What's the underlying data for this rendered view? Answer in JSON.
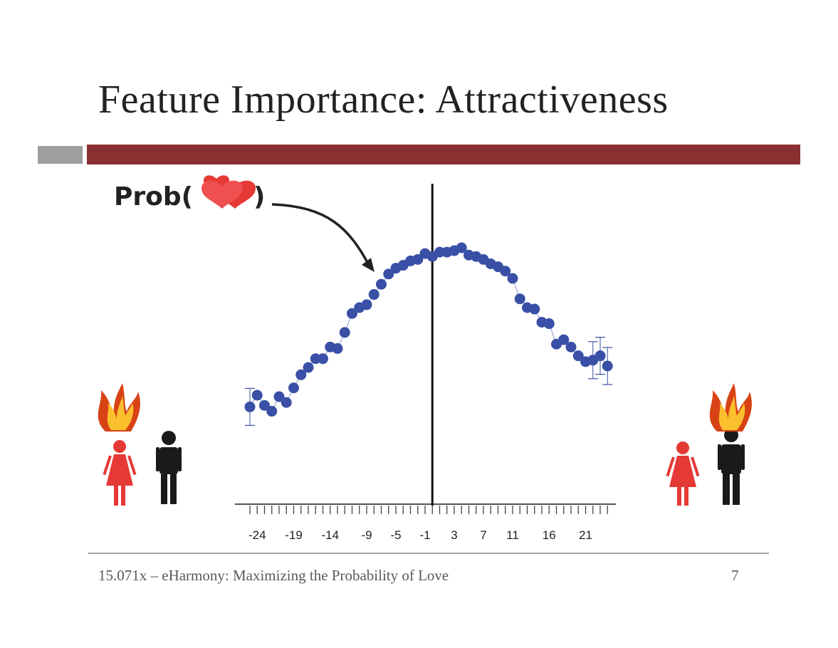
{
  "slide": {
    "title": "Feature Importance: Attractiveness",
    "footer": "15.071x – eHarmony: Maximizing the Probability of Love",
    "page_number": "7"
  },
  "colors": {
    "title_bar": "#8b3030",
    "title_bar_accent": "#9e9e9e",
    "points": "#3a4fa6",
    "woman_figure": "#e53935",
    "man_figure": "#1a1a1a",
    "flame_outer": "#d84315",
    "flame_inner": "#fbc02d"
  },
  "annotation": {
    "prefix": "Prob(",
    "suffix": ")",
    "icon": "hearts-icon"
  },
  "figures": {
    "left": {
      "icons": [
        "flame-icon",
        "woman-icon",
        "man-icon"
      ],
      "flame_over": "woman"
    },
    "right": {
      "icons": [
        "woman-icon",
        "man-icon",
        "flame-icon"
      ],
      "flame_over": "man"
    }
  },
  "chart_data": {
    "type": "scatter",
    "x": [
      -25,
      -24,
      -23,
      -22,
      -21,
      -20,
      -19,
      -18,
      -17,
      -16,
      -15,
      -14,
      -13,
      -12,
      -11,
      -10,
      -9,
      -8,
      -7,
      -6,
      -5,
      -4,
      -3,
      -2,
      -1,
      0,
      1,
      2,
      3,
      4,
      5,
      6,
      7,
      8,
      9,
      10,
      11,
      12,
      13,
      14,
      15,
      16,
      17,
      18,
      19,
      20,
      21,
      22,
      23,
      24
    ],
    "y": [
      0.12,
      0.2,
      0.13,
      0.09,
      0.19,
      0.15,
      0.25,
      0.34,
      0.39,
      0.45,
      0.45,
      0.53,
      0.52,
      0.63,
      0.76,
      0.8,
      0.82,
      0.89,
      0.96,
      1.03,
      1.07,
      1.09,
      1.12,
      1.13,
      1.17,
      1.15,
      1.18,
      1.18,
      1.19,
      1.21,
      1.16,
      1.15,
      1.13,
      1.1,
      1.08,
      1.05,
      1.0,
      0.86,
      0.8,
      0.79,
      0.7,
      0.69,
      0.55,
      0.58,
      0.53,
      0.47,
      0.43,
      0.44,
      0.47,
      0.4
    ],
    "error_bars_at": [
      -25,
      22,
      23,
      24
    ],
    "xlim": [
      -25,
      24
    ],
    "xticks_labeled": [
      -24,
      -19,
      -14,
      -9,
      -5,
      -1,
      3,
      7,
      11,
      16,
      21
    ],
    "vertical_reference_line": 0,
    "grid": false,
    "title": "",
    "xlabel": "",
    "ylabel": ""
  }
}
